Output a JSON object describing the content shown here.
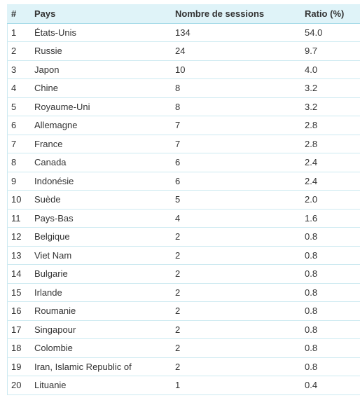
{
  "table": {
    "headers": [
      "#",
      "Pays",
      "Nombre de sessions",
      "Ratio (%)"
    ],
    "rows": [
      [
        "1",
        "États-Unis",
        "134",
        "54.0"
      ],
      [
        "2",
        "Russie",
        "24",
        "9.7"
      ],
      [
        "3",
        "Japon",
        "10",
        "4.0"
      ],
      [
        "4",
        "Chine",
        "8",
        "3.2"
      ],
      [
        "5",
        "Royaume-Uni",
        "8",
        "3.2"
      ],
      [
        "6",
        "Allemagne",
        "7",
        "2.8"
      ],
      [
        "7",
        "France",
        "7",
        "2.8"
      ],
      [
        "8",
        "Canada",
        "6",
        "2.4"
      ],
      [
        "9",
        "Indonésie",
        "6",
        "2.4"
      ],
      [
        "10",
        "Suède",
        "5",
        "2.0"
      ],
      [
        "11",
        "Pays-Bas",
        "4",
        "1.6"
      ],
      [
        "12",
        "Belgique",
        "2",
        "0.8"
      ],
      [
        "13",
        "Viet Nam",
        "2",
        "0.8"
      ],
      [
        "14",
        "Bulgarie",
        "2",
        "0.8"
      ],
      [
        "15",
        "Irlande",
        "2",
        "0.8"
      ],
      [
        "16",
        "Roumanie",
        "2",
        "0.8"
      ],
      [
        "17",
        "Singapour",
        "2",
        "0.8"
      ],
      [
        "18",
        "Colombie",
        "2",
        "0.8"
      ],
      [
        "19",
        "Iran, Islamic Republic of",
        "2",
        "0.8"
      ],
      [
        "20",
        "Lituanie",
        "1",
        "0.4"
      ]
    ]
  },
  "colors": {
    "header_background": "#dff3f8",
    "row_border": "#cdeaf1",
    "text": "#333333"
  }
}
